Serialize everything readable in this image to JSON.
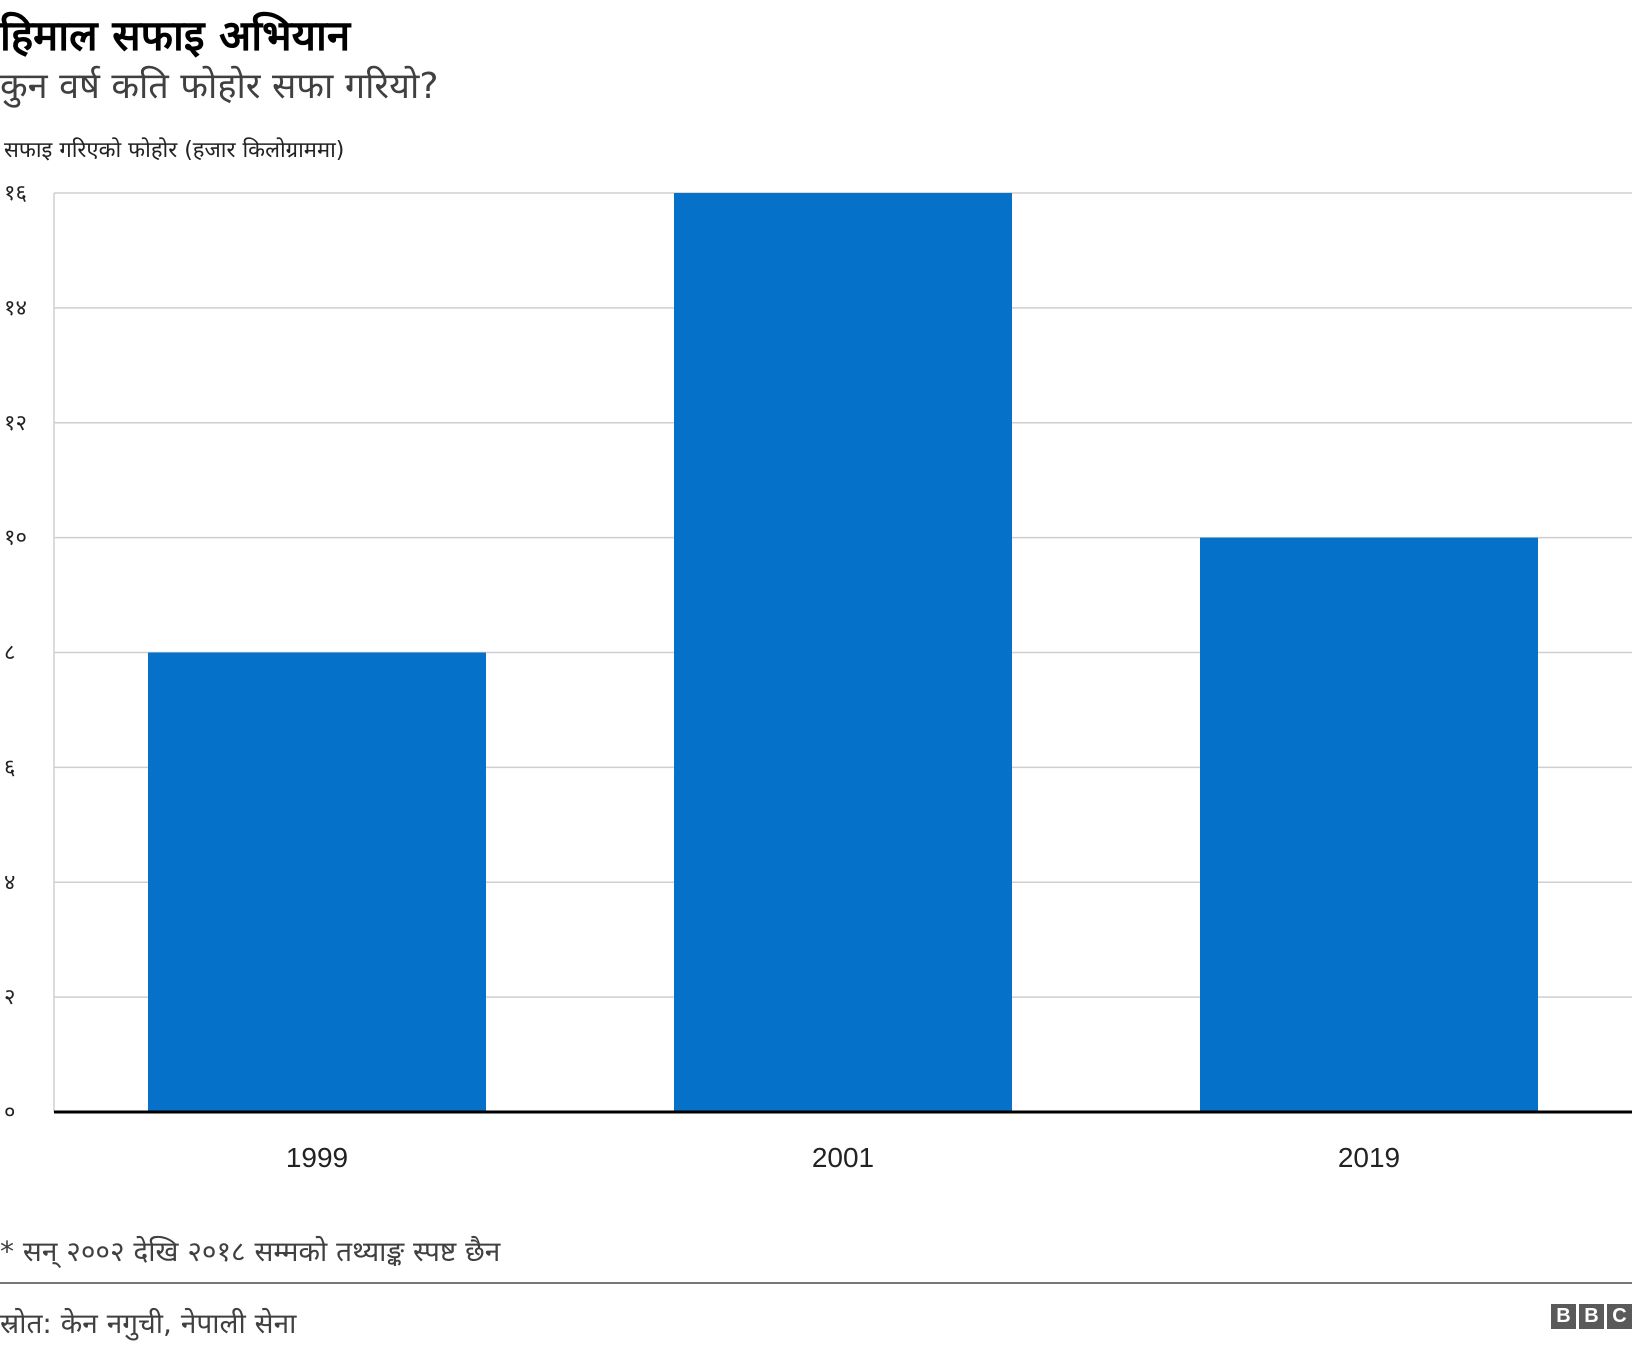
{
  "header": {
    "title": "हिमाल सफाइ अभियान",
    "subtitle": "कुन वर्ष कति फोहोर सफा गरियो?"
  },
  "footer": {
    "footnote": "* सन् २००२ देखि २०१८ सम्मको तथ्याङ्क स्पष्ट छैन",
    "source": "स्रोत: केन नगुची, नेपाली सेना",
    "logo": [
      "B",
      "B",
      "C"
    ]
  },
  "chart_data": {
    "type": "bar",
    "title": "हिमाल सफाइ अभियान",
    "subtitle": "कुन वर्ष कति फोहोर सफा गरियो?",
    "ylabel": "सफाइ गरिएको फोहोर (हजार किलोग्राममा)",
    "xlabel": "",
    "categories": [
      "1999",
      "2001",
      "2019"
    ],
    "values": [
      8,
      16,
      10
    ],
    "ylim": [
      0,
      16
    ],
    "yticks": [
      0,
      2,
      4,
      6,
      8,
      10,
      12,
      14,
      16
    ],
    "ytick_labels": [
      "०",
      "२",
      "४",
      "६",
      "८",
      "१०",
      "१२",
      "१४",
      "१६"
    ],
    "grid": true,
    "bar_color": "#0571c9"
  }
}
